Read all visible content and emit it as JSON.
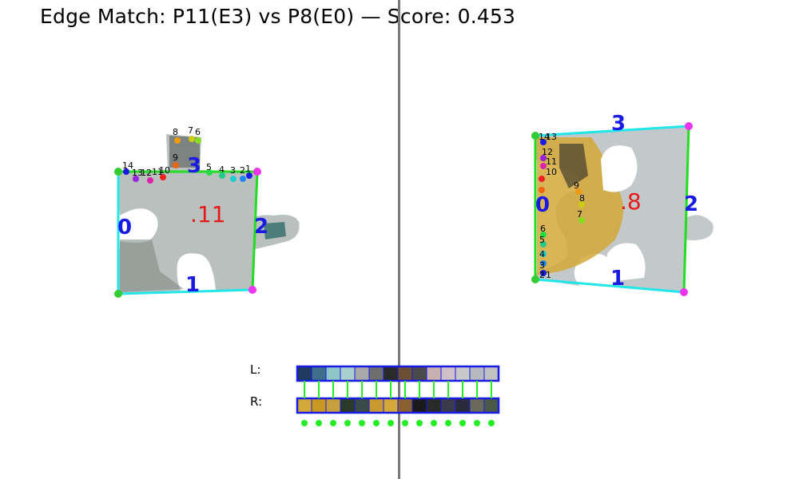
{
  "title": "Edge Match: P11(E3) vs P8(E0) — Score: 0.453",
  "colors": {
    "edge_cyan": "#22e6ea",
    "edge_green": "#22dd22",
    "corner_magenta": "#ee33ee",
    "corner_green": "#33cc33",
    "label_blue": "#1a1ae6",
    "label_red": "#e61a1a",
    "divider": "#7a7a7a",
    "swatch_border": "#1a1ae6"
  },
  "left_piece": {
    "id_label": ".11",
    "edge_labels": [
      "0",
      "1",
      "2",
      "3"
    ],
    "point_labels": [
      "14",
      "13",
      "12",
      "11",
      "10",
      "9",
      "8",
      "7",
      "6",
      "5",
      "4",
      "3",
      "2",
      "1"
    ]
  },
  "right_piece": {
    "id_label": ".8",
    "edge_labels": [
      "0",
      "1",
      "2",
      "3"
    ],
    "point_labels": [
      "14",
      "13",
      "12",
      "11",
      "10",
      "9",
      "8",
      "7",
      "6",
      "5",
      "4",
      "3",
      "2",
      "1"
    ]
  },
  "strips": {
    "left_label": "L:",
    "right_label": "R:",
    "left_colors": [
      "#1e3a5c",
      "#3f6f8a",
      "#8fc4c8",
      "#a9cfcf",
      "#a8a8a8",
      "#6e6e6e",
      "#2a2a2a",
      "#6a5030",
      "#4a4a4a",
      "#c8b0b0",
      "#d0c0c8",
      "#c8c8c8",
      "#b8b8c0",
      "#c0c0c0"
    ],
    "right_colors": [
      "#d4a838",
      "#c89820",
      "#c8a040",
      "#2a3a2a",
      "#3a4a48",
      "#c89a30",
      "#d4a838",
      "#8a6030",
      "#1a1a1a",
      "#2a2a2a",
      "#3a3a4a",
      "#2a2a3a",
      "#6a6a5a",
      "#4a5a48"
    ],
    "match_dot_color": "#22ee22",
    "match_count": 14
  }
}
